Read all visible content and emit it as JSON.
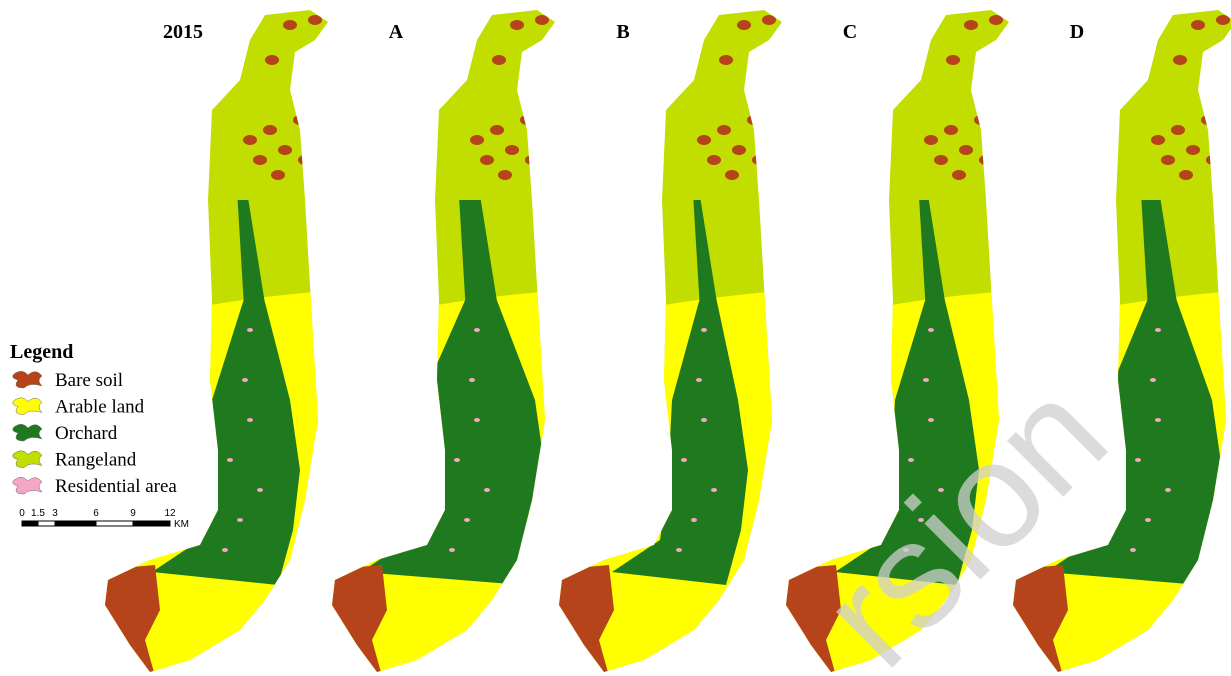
{
  "panels": [
    {
      "title": "2015"
    },
    {
      "title": "A"
    },
    {
      "title": "B"
    },
    {
      "title": "C"
    },
    {
      "title": "D"
    }
  ],
  "legend": {
    "title": "Legend",
    "items": [
      {
        "label": "Bare soil",
        "color": "#b5441a"
      },
      {
        "label": "Arable land",
        "color": "#ffff00"
      },
      {
        "label": "Orchard",
        "color": "#1f7a1f"
      },
      {
        "label": "Rangeland",
        "color": "#c2dd00"
      },
      {
        "label": "Residential area",
        "color": "#f4a6c6"
      }
    ]
  },
  "scale_bar": {
    "ticks": [
      "0",
      "1.5",
      "3",
      "6",
      "9",
      "12"
    ],
    "unit": "KM"
  },
  "watermark": "rsion"
}
